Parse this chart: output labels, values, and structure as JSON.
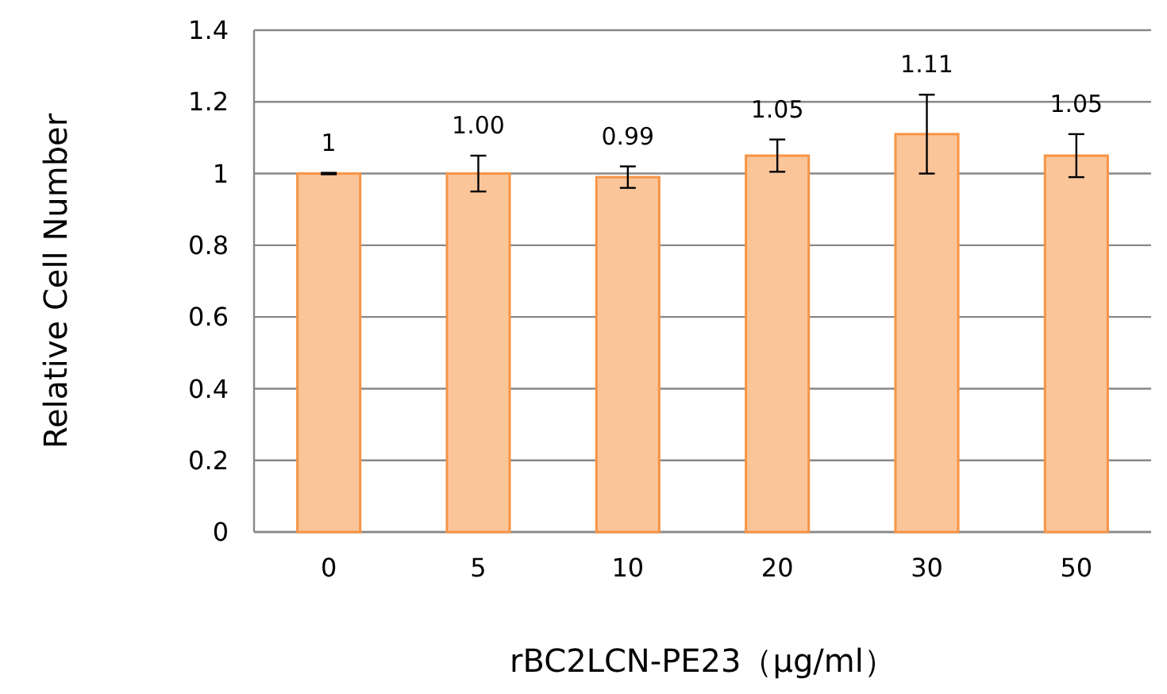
{
  "chart_data": {
    "type": "bar",
    "xlabel": "rBC2LCN-PE23（μg/ml）",
    "ylabel": "Relative Cell Number",
    "categories": [
      "0",
      "5",
      "10",
      "20",
      "30",
      "50"
    ],
    "values": [
      1,
      1.0,
      0.99,
      1.05,
      1.11,
      1.05
    ],
    "errors": [
      0.002,
      0.05,
      0.03,
      0.045,
      0.11,
      0.06
    ],
    "value_labels": [
      "1",
      "1.00",
      "0.99",
      "1.05",
      "1.11",
      "1.05"
    ],
    "color": "#fbc59a",
    "ylim": [
      0,
      1.4
    ],
    "yticks": [
      {
        "value": 0,
        "label": "0"
      },
      {
        "value": 0.2,
        "label": "0.2"
      },
      {
        "value": 0.4,
        "label": "0.4"
      },
      {
        "value": 0.6,
        "label": "0.6"
      },
      {
        "value": 0.8,
        "label": "0.8"
      },
      {
        "value": 1,
        "label": "1"
      },
      {
        "value": 1.2,
        "label": "1.2"
      },
      {
        "value": 1.4,
        "label": "1.4"
      }
    ],
    "grid": "y"
  }
}
